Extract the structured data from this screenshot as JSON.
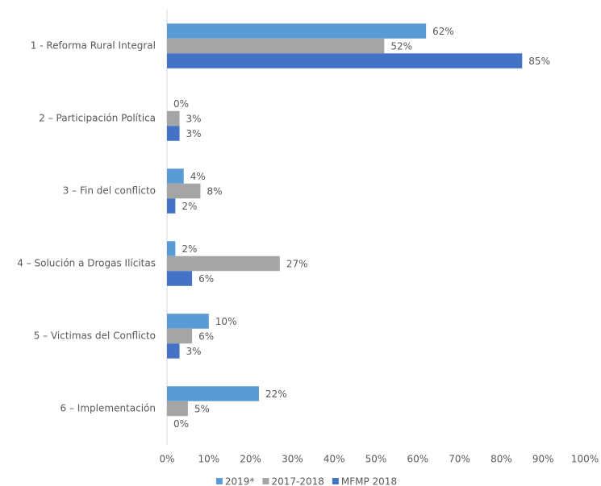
{
  "chart_data": {
    "type": "bar",
    "orientation": "horizontal",
    "categories": [
      "1 -  Reforma Rural Integral",
      "2 – Participación Política",
      "3 – Fin del conflicto",
      "4 – Solución a Drogas Ilícitas",
      "5 – Victimas del Conflicto",
      "6 – Implementación"
    ],
    "series": [
      {
        "name": "2019*",
        "color": "#5b9bd5",
        "values": [
          62,
          0,
          4,
          2,
          10,
          22
        ],
        "value_labels": [
          "62%",
          "0%",
          "4%",
          "2%",
          "10%",
          "22%"
        ]
      },
      {
        "name": "2017-2018",
        "color": "#a5a5a5",
        "values": [
          52,
          3,
          8,
          27,
          6,
          5
        ],
        "value_labels": [
          "52%",
          "3%",
          "8%",
          "27%",
          "6%",
          "5%"
        ]
      },
      {
        "name": "MFMP 2018",
        "color": "#4472c4",
        "values": [
          85,
          3,
          2,
          6,
          3,
          0
        ],
        "value_labels": [
          "85%",
          "3%",
          "2%",
          "6%",
          "3%",
          "0%"
        ]
      }
    ],
    "xlim": [
      0,
      100
    ],
    "xticks": [
      {
        "value": 0,
        "label": "0%"
      },
      {
        "value": 10,
        "label": "10%"
      },
      {
        "value": 20,
        "label": "20%"
      },
      {
        "value": 30,
        "label": "30%"
      },
      {
        "value": 40,
        "label": "40%"
      },
      {
        "value": 50,
        "label": "50%"
      },
      {
        "value": 60,
        "label": "60%"
      },
      {
        "value": 70,
        "label": "70%"
      },
      {
        "value": 80,
        "label": "80%"
      },
      {
        "value": 90,
        "label": "90%"
      },
      {
        "value": 100,
        "label": "100%"
      }
    ],
    "grid": false,
    "legend": "bottom"
  }
}
